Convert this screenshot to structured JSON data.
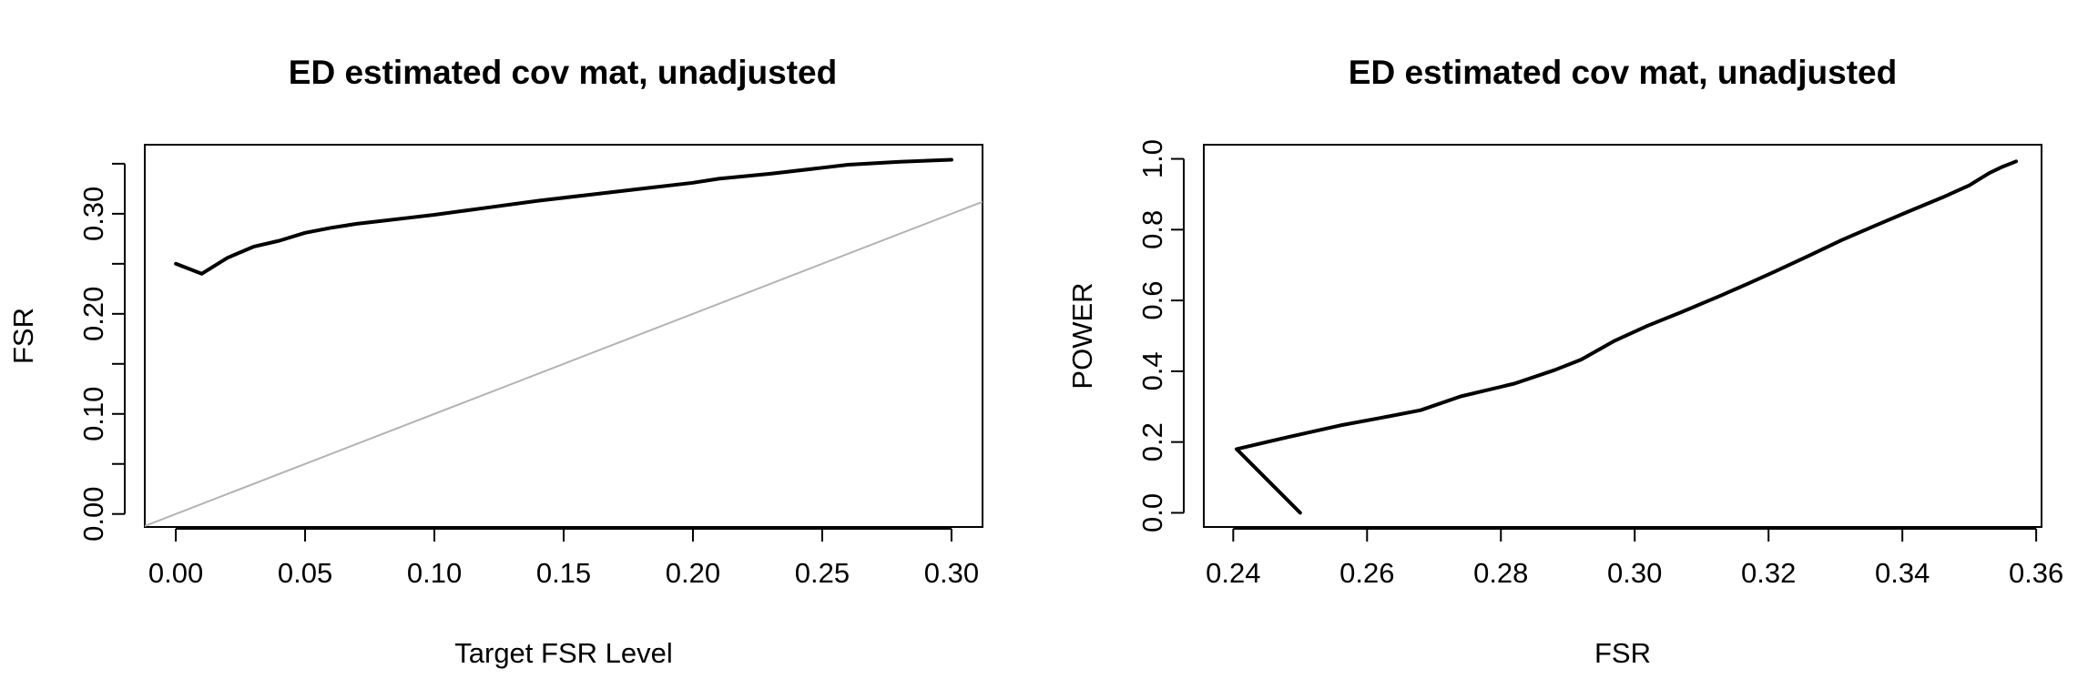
{
  "chart_data": [
    {
      "type": "line",
      "title": "ED estimated cov mat, unadjusted",
      "xlabel": "Target FSR Level",
      "ylabel": "FSR",
      "xlim": [
        -0.012,
        0.312
      ],
      "ylim": [
        -0.013,
        0.369
      ],
      "x_ticks": [
        "0.00",
        "0.05",
        "0.10",
        "0.15",
        "0.20",
        "0.25",
        "0.30"
      ],
      "x_tick_values": [
        0.0,
        0.05,
        0.1,
        0.15,
        0.2,
        0.25,
        0.3
      ],
      "y_ticks": [
        "0.00",
        "",
        "0.10",
        "",
        "0.20",
        "",
        "0.30",
        ""
      ],
      "y_tick_values": [
        0.0,
        0.05,
        0.1,
        0.15,
        0.2,
        0.25,
        0.3,
        0.35
      ],
      "grid": false,
      "reference_line": {
        "intercept": 0,
        "slope": 1,
        "color": "#b3b3b3"
      },
      "series": [
        {
          "x": [
            0.0,
            0.01,
            0.02,
            0.03,
            0.04,
            0.05,
            0.06,
            0.07,
            0.08,
            0.09,
            0.1,
            0.12,
            0.14,
            0.16,
            0.18,
            0.2,
            0.21,
            0.23,
            0.25,
            0.26,
            0.28,
            0.3
          ],
          "y": [
            0.25,
            0.24,
            0.256,
            0.267,
            0.273,
            0.281,
            0.286,
            0.29,
            0.293,
            0.296,
            0.299,
            0.306,
            0.313,
            0.319,
            0.325,
            0.331,
            0.335,
            0.34,
            0.346,
            0.349,
            0.352,
            0.354
          ]
        }
      ]
    },
    {
      "type": "line",
      "title": "ED estimated cov mat, unadjusted",
      "xlabel": "FSR",
      "ylabel": "POWER",
      "xlim": [
        0.2356,
        0.3608
      ],
      "ylim": [
        -0.04,
        1.04
      ],
      "x_ticks": [
        "0.24",
        "0.26",
        "0.28",
        "0.30",
        "0.32",
        "0.34",
        "0.36"
      ],
      "x_tick_values": [
        0.24,
        0.26,
        0.28,
        0.3,
        0.32,
        0.34,
        0.36
      ],
      "y_ticks": [
        "0.0",
        "0.2",
        "0.4",
        "0.6",
        "0.8",
        "1.0"
      ],
      "y_tick_values": [
        0.0,
        0.2,
        0.4,
        0.6,
        0.8,
        1.0
      ],
      "grid": false,
      "series": [
        {
          "x": [
            0.25,
            0.2405,
            0.248,
            0.256,
            0.262,
            0.268,
            0.274,
            0.282,
            0.288,
            0.292,
            0.297,
            0.302,
            0.307,
            0.313,
            0.317,
            0.321,
            0.326,
            0.331,
            0.336,
            0.341,
            0.346,
            0.35,
            0.353,
            0.355,
            0.357
          ],
          "y": [
            0.0,
            0.18,
            0.213,
            0.247,
            0.268,
            0.29,
            0.329,
            0.365,
            0.403,
            0.433,
            0.486,
            0.529,
            0.567,
            0.615,
            0.648,
            0.682,
            0.726,
            0.771,
            0.812,
            0.852,
            0.891,
            0.925,
            0.96,
            0.978,
            0.993
          ]
        }
      ]
    }
  ]
}
